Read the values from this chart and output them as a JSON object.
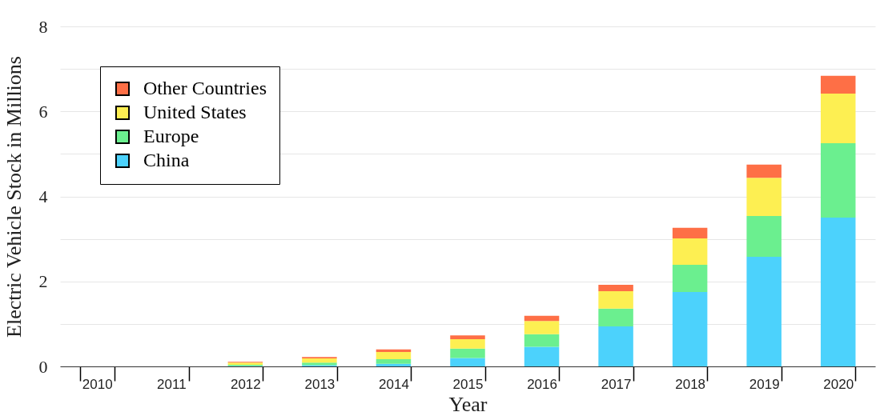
{
  "chart_data": {
    "type": "bar",
    "stacked": true,
    "xlabel": "Year",
    "ylabel": "Electric Vehicle Stock in Millions",
    "categories": [
      "2010",
      "2011",
      "2012",
      "2013",
      "2014",
      "2015",
      "2016",
      "2017",
      "2018",
      "2019",
      "2020"
    ],
    "series": [
      {
        "name": "China",
        "color": "#4cd2fc",
        "values": [
          0,
          0,
          0.01,
          0.03,
          0.06,
          0.2,
          0.46,
          0.94,
          1.75,
          2.58,
          3.5
        ]
      },
      {
        "name": "Europe",
        "color": "#6bef8f",
        "values": [
          0,
          0,
          0.03,
          0.06,
          0.11,
          0.22,
          0.3,
          0.42,
          0.64,
          0.96,
          1.75
        ]
      },
      {
        "name": "United States",
        "color": "#fdef52",
        "values": [
          0,
          0,
          0.05,
          0.1,
          0.17,
          0.22,
          0.31,
          0.41,
          0.62,
          0.9,
          1.17
        ]
      },
      {
        "name": "Other Countries",
        "color": "#fe6f46",
        "values": [
          0,
          0,
          0.02,
          0.03,
          0.06,
          0.09,
          0.12,
          0.15,
          0.25,
          0.31,
          0.42
        ]
      }
    ],
    "ylim": [
      0,
      8
    ],
    "yticks": [
      0,
      {
        "value": 1,
        "label": null
      },
      2,
      {
        "value": 3,
        "label": null
      },
      4,
      {
        "value": 5,
        "label": null
      },
      6,
      {
        "value": 7,
        "label": null
      },
      8
    ],
    "grid": "y",
    "legend": "top left"
  }
}
